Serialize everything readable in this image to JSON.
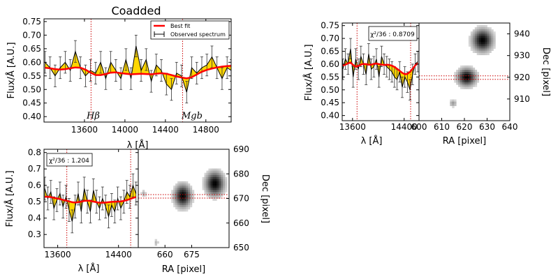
{
  "colors": {
    "fill": "#FFD700",
    "fit": "#FF0000",
    "data": "#000000",
    "marker": "#CC0000"
  },
  "chart_data": [
    {
      "id": "coadd",
      "type": "line",
      "title": "Coadded",
      "xlabel": "λ [Å]",
      "ylabel": "Flux/Å [A.U.]",
      "xlim": [
        13200,
        15050
      ],
      "ylim": [
        0.38,
        0.76
      ],
      "xticks": [
        13600,
        14000,
        14400,
        14800
      ],
      "yticks": [
        0.4,
        0.45,
        0.5,
        0.55,
        0.6,
        0.65,
        0.7,
        0.75
      ],
      "ytick_labels": [
        "0.40",
        "0.45",
        "0.50",
        "0.55",
        "0.60",
        "0.65",
        "0.70",
        "0.75"
      ],
      "legend": {
        "fit": "Best fit",
        "obs": "Observed spectrum"
      },
      "lines": [
        {
          "x": 13665,
          "label": "Hβ"
        },
        {
          "x": 14570,
          "label": "Mgb"
        }
      ],
      "series": {
        "x": [
          13210,
          13260,
          13310,
          13360,
          13410,
          13460,
          13510,
          13560,
          13610,
          13660,
          13710,
          13760,
          13810,
          13860,
          13910,
          13960,
          14010,
          14060,
          14110,
          14160,
          14210,
          14260,
          14310,
          14360,
          14410,
          14460,
          14510,
          14560,
          14610,
          14660,
          14710,
          14760,
          14810,
          14860,
          14910,
          14960,
          15010,
          15050
        ],
        "obs": [
          0.6,
          0.58,
          0.55,
          0.58,
          0.6,
          0.57,
          0.64,
          0.58,
          0.55,
          0.57,
          0.56,
          0.6,
          0.54,
          0.6,
          0.57,
          0.54,
          0.61,
          0.54,
          0.66,
          0.57,
          0.61,
          0.53,
          0.59,
          0.57,
          0.52,
          0.5,
          0.56,
          0.55,
          0.49,
          0.58,
          0.56,
          0.58,
          0.59,
          0.62,
          0.58,
          0.54,
          0.58,
          0.57
        ],
        "err": [
          0.04,
          0.04,
          0.04,
          0.04,
          0.04,
          0.04,
          0.04,
          0.04,
          0.04,
          0.04,
          0.04,
          0.04,
          0.04,
          0.04,
          0.04,
          0.04,
          0.04,
          0.04,
          0.04,
          0.04,
          0.04,
          0.04,
          0.04,
          0.04,
          0.04,
          0.04,
          0.04,
          0.04,
          0.04,
          0.04,
          0.04,
          0.04,
          0.04,
          0.04,
          0.04,
          0.04,
          0.04,
          0.04
        ],
        "fit": [
          0.58,
          0.578,
          0.575,
          0.573,
          0.575,
          0.578,
          0.581,
          0.58,
          0.573,
          0.562,
          0.553,
          0.553,
          0.557,
          0.562,
          0.563,
          0.56,
          0.558,
          0.556,
          0.557,
          0.558,
          0.557,
          0.556,
          0.558,
          0.56,
          0.558,
          0.553,
          0.548,
          0.544,
          0.541,
          0.545,
          0.555,
          0.565,
          0.572,
          0.577,
          0.581,
          0.584,
          0.586,
          0.587
        ]
      }
    },
    {
      "id": "top",
      "type": "line",
      "annotation": "χ²/36 : 0.8709",
      "xlabel": "λ [Å]",
      "ylabel": "Flux/Å [A.U.]",
      "xlim": [
        13440,
        14630
      ],
      "ylim": [
        0.38,
        0.76
      ],
      "xticks": [
        13600,
        14400
      ],
      "yticks": [
        0.4,
        0.45,
        0.5,
        0.55,
        0.6,
        0.65,
        0.7,
        0.75
      ],
      "ytick_labels": [
        "0.40",
        "0.45",
        "0.50",
        "0.55",
        "0.60",
        "0.65",
        "0.70",
        "0.75"
      ],
      "lines": [
        {
          "x": 13670
        },
        {
          "x": 14500
        }
      ],
      "series": {
        "x": [
          13450,
          13490,
          13530,
          13570,
          13610,
          13650,
          13690,
          13730,
          13770,
          13810,
          13850,
          13890,
          13930,
          13970,
          14010,
          14050,
          14090,
          14130,
          14170,
          14210,
          14250,
          14290,
          14330,
          14370,
          14410,
          14450,
          14490,
          14530,
          14570,
          14610
        ],
        "obs": [
          0.58,
          0.62,
          0.6,
          0.66,
          0.55,
          0.62,
          0.58,
          0.63,
          0.6,
          0.56,
          0.64,
          0.58,
          0.59,
          0.62,
          0.55,
          0.63,
          0.6,
          0.59,
          0.58,
          0.57,
          0.55,
          0.54,
          0.57,
          0.51,
          0.55,
          0.53,
          0.5,
          0.56,
          0.6,
          0.61
        ],
        "err": [
          0.04,
          0.04,
          0.04,
          0.04,
          0.04,
          0.04,
          0.04,
          0.04,
          0.04,
          0.04,
          0.04,
          0.04,
          0.04,
          0.04,
          0.04,
          0.04,
          0.04,
          0.04,
          0.04,
          0.04,
          0.04,
          0.04,
          0.04,
          0.04,
          0.04,
          0.04,
          0.04,
          0.04,
          0.04,
          0.04
        ],
        "fit": [
          0.595,
          0.598,
          0.603,
          0.606,
          0.597,
          0.59,
          0.593,
          0.598,
          0.601,
          0.6,
          0.598,
          0.598,
          0.601,
          0.602,
          0.6,
          0.598,
          0.597,
          0.598,
          0.597,
          0.594,
          0.589,
          0.582,
          0.574,
          0.566,
          0.561,
          0.562,
          0.57,
          0.582,
          0.595,
          0.604
        ]
      }
    },
    {
      "id": "bottom",
      "type": "line",
      "annotation": "χ²/36 : 1.204",
      "xlabel": "λ [Å]",
      "ylabel": "Flux/Å [A.U.]",
      "xlim": [
        13420,
        14660
      ],
      "ylim": [
        0.22,
        0.82
      ],
      "xticks": [
        13600,
        14400
      ],
      "yticks": [
        0.3,
        0.4,
        0.5,
        0.6,
        0.7,
        0.8
      ],
      "ytick_labels": [
        "0.3",
        "0.4",
        "0.5",
        "0.6",
        "0.7",
        "0.8"
      ],
      "lines": [
        {
          "x": 13720
        },
        {
          "x": 14560
        }
      ],
      "series": {
        "x": [
          13430,
          13470,
          13510,
          13550,
          13590,
          13630,
          13670,
          13710,
          13750,
          13790,
          13830,
          13870,
          13910,
          13950,
          13990,
          14030,
          14070,
          14110,
          14150,
          14190,
          14230,
          14270,
          14310,
          14350,
          14390,
          14430,
          14470,
          14510,
          14550,
          14590,
          14630
        ],
        "obs": [
          0.58,
          0.52,
          0.56,
          0.46,
          0.51,
          0.55,
          0.47,
          0.53,
          0.45,
          0.38,
          0.47,
          0.55,
          0.44,
          0.58,
          0.5,
          0.44,
          0.57,
          0.5,
          0.46,
          0.52,
          0.47,
          0.41,
          0.48,
          0.44,
          0.52,
          0.46,
          0.5,
          0.56,
          0.53,
          0.6,
          0.55
        ],
        "err": [
          0.07,
          0.07,
          0.07,
          0.07,
          0.07,
          0.07,
          0.07,
          0.07,
          0.07,
          0.07,
          0.07,
          0.07,
          0.07,
          0.07,
          0.07,
          0.07,
          0.07,
          0.07,
          0.07,
          0.07,
          0.07,
          0.07,
          0.07,
          0.07,
          0.07,
          0.07,
          0.07,
          0.07,
          0.07,
          0.07,
          0.07
        ],
        "fit": [
          0.53,
          0.53,
          0.528,
          0.524,
          0.52,
          0.516,
          0.511,
          0.507,
          0.502,
          0.497,
          0.495,
          0.497,
          0.501,
          0.505,
          0.507,
          0.505,
          0.501,
          0.497,
          0.494,
          0.494,
          0.495,
          0.497,
          0.499,
          0.5,
          0.501,
          0.502,
          0.505,
          0.51,
          0.516,
          0.523,
          0.528
        ]
      }
    },
    {
      "id": "img_top",
      "type": "heatmap",
      "xlabel": "RA [pixel]",
      "ylabel": "Dec [pixel]",
      "xlim": [
        600,
        640
      ],
      "ylim": [
        900,
        945
      ],
      "xticks": [
        600,
        610,
        620,
        630,
        640
      ],
      "yticks": [
        910,
        920,
        930,
        940
      ],
      "cross": [
        621,
        920
      ],
      "sources": [
        {
          "ra": 621,
          "dec": 920,
          "amp": 1.0,
          "sigma": 2.2
        },
        {
          "ra": 628,
          "dec": 937,
          "amp": 1.0,
          "sigma": 2.4,
          "sy": 2.8
        },
        {
          "ra": 615,
          "dec": 908,
          "amp": 0.22,
          "sigma": 0.9
        }
      ]
    },
    {
      "id": "img_bottom",
      "type": "heatmap",
      "xlabel": "RA [pixel]",
      "ylabel": "Dec [pixel]",
      "xlim": [
        645,
        696
      ],
      "ylim": [
        650,
        690
      ],
      "xticks": [
        660,
        675
      ],
      "yticks": [
        650,
        660,
        670,
        680,
        690
      ],
      "cross": [
        670,
        671
      ],
      "sources": [
        {
          "ra": 670,
          "dec": 671,
          "amp": 1.0,
          "sigma": 2.5
        },
        {
          "ra": 688,
          "dec": 676,
          "amp": 1.0,
          "sigma": 2.8,
          "sy": 2.6
        },
        {
          "ra": 648,
          "dec": 672,
          "amp": 0.15,
          "sigma": 0.8
        },
        {
          "ra": 655,
          "dec": 652,
          "amp": 0.12,
          "sigma": 0.8
        }
      ]
    }
  ]
}
